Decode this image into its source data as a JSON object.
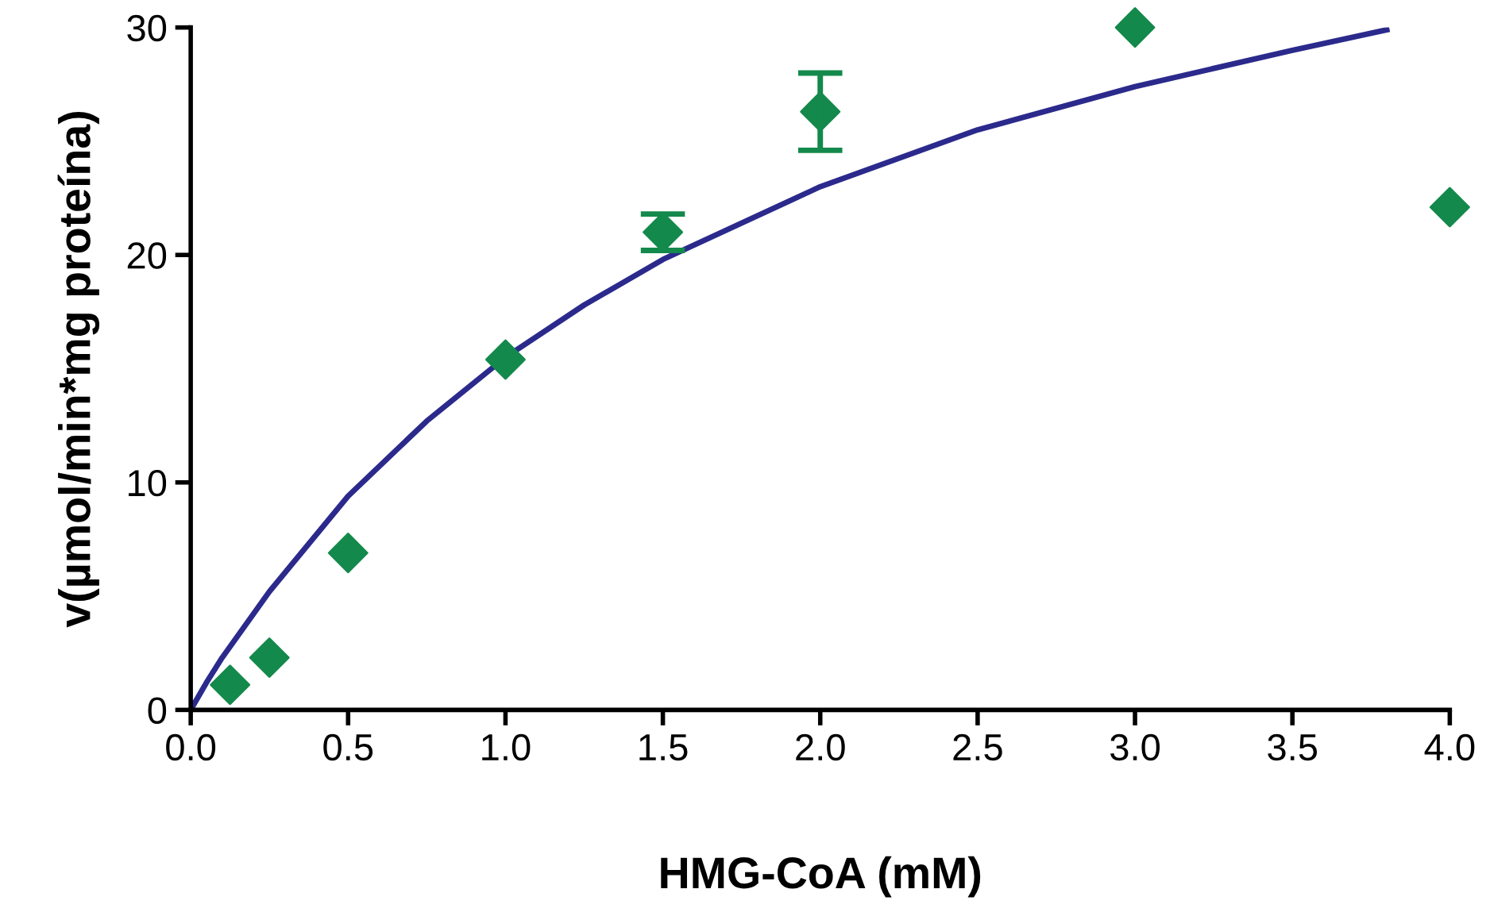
{
  "chart_data": {
    "type": "scatter",
    "xlabel": "HMG-CoA (mM)",
    "ylabel": "v(µmol/min*mg proteína)",
    "xlim": [
      0,
      4.0
    ],
    "ylim": [
      0,
      30
    ],
    "xticks": [
      {
        "value": 0,
        "label": "0.0"
      },
      {
        "value": 0.5,
        "label": "0.5"
      },
      {
        "value": 1,
        "label": "1.0"
      },
      {
        "value": 1.5,
        "label": "1.5"
      },
      {
        "value": 2,
        "label": "2.0"
      },
      {
        "value": 2.5,
        "label": "2.5"
      },
      {
        "value": 3,
        "label": "3.0"
      },
      {
        "value": 3.5,
        "label": "3.5"
      },
      {
        "value": 4,
        "label": "4.0"
      }
    ],
    "yticks": [
      0,
      10,
      20,
      30
    ],
    "grid": false,
    "series": [
      {
        "color": "#13894b",
        "marker": "diamond",
        "x": [
          0.125,
          0.25,
          0.5,
          1.0,
          1.5,
          2.0,
          3.0,
          4.0
        ],
        "values": [
          1.1,
          2.3,
          6.9,
          15.4,
          21.0,
          26.3,
          30.0,
          22.1
        ],
        "errors": [
          null,
          null,
          null,
          null,
          0.8,
          1.7,
          null,
          null
        ]
      },
      {
        "type": "line",
        "color": "#2b2a8c",
        "marker": "none",
        "line_style": "solid",
        "x": [
          0,
          0.05,
          0.1,
          0.25,
          0.5,
          0.75,
          1.0,
          1.25,
          1.5,
          2.0,
          2.5,
          3.0,
          3.5,
          3.8
        ],
        "values": [
          0,
          1.2,
          2.3,
          5.2,
          9.4,
          12.7,
          15.5,
          17.8,
          19.8,
          23.0,
          25.5,
          27.4,
          29.0,
          29.9
        ]
      }
    ]
  }
}
